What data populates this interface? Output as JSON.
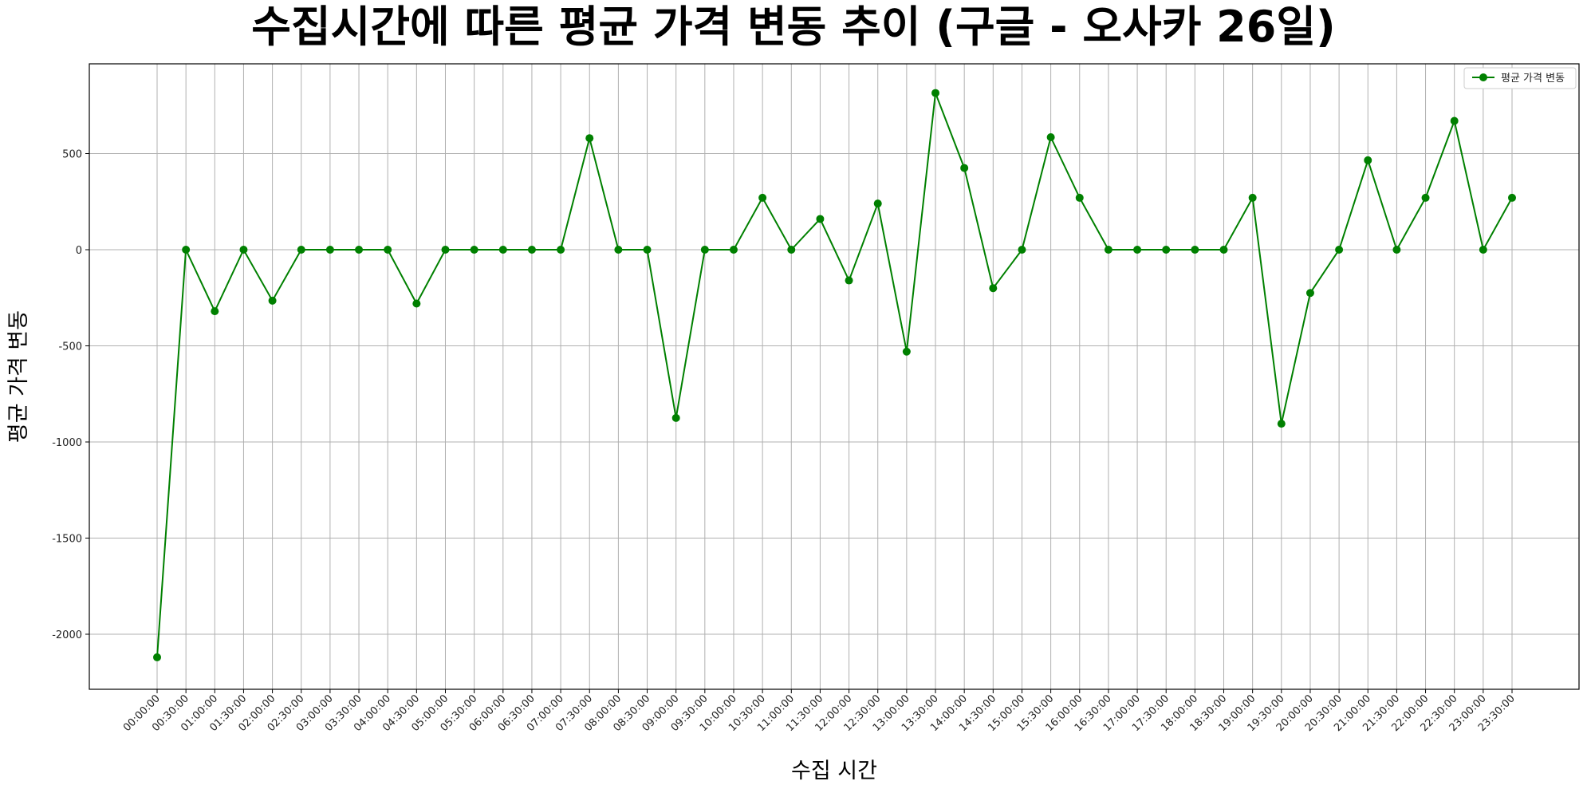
{
  "chart_data": {
    "type": "line",
    "title": "수집시간에 따른 평균 가격 변동 추이 (구글 - 오사카 26일)",
    "xlabel": "수집 시간",
    "ylabel": "평균 가격 변동",
    "ylim": [
      -2250,
      950
    ],
    "yticks": [
      500,
      0,
      -500,
      -1000,
      -1500,
      -2000
    ],
    "grid": true,
    "legend_position": "top-right",
    "color": "#008000",
    "x": [
      "00:00:00",
      "00:30:00",
      "01:00:00",
      "01:30:00",
      "02:00:00",
      "02:30:00",
      "03:00:00",
      "03:30:00",
      "04:00:00",
      "04:30:00",
      "05:00:00",
      "05:30:00",
      "06:00:00",
      "06:30:00",
      "07:00:00",
      "07:30:00",
      "08:00:00",
      "08:30:00",
      "09:00:00",
      "09:30:00",
      "10:00:00",
      "10:30:00",
      "11:00:00",
      "11:30:00",
      "12:00:00",
      "12:30:00",
      "13:00:00",
      "13:30:00",
      "14:00:00",
      "14:30:00",
      "15:00:00",
      "15:30:00",
      "16:00:00",
      "16:30:00",
      "17:00:00",
      "17:30:00",
      "18:00:00",
      "18:30:00",
      "19:00:00",
      "19:30:00",
      "20:00:00",
      "20:30:00",
      "21:00:00",
      "21:30:00",
      "22:00:00",
      "22:30:00",
      "23:00:00",
      "23:30:00"
    ],
    "series": [
      {
        "name": "평균 가격 변동",
        "values": [
          -2120,
          0,
          -320,
          0,
          -265,
          0,
          0,
          0,
          0,
          -280,
          0,
          0,
          0,
          0,
          0,
          580,
          0,
          0,
          -875,
          0,
          0,
          270,
          0,
          160,
          -160,
          240,
          -530,
          815,
          425,
          -200,
          0,
          585,
          270,
          0,
          0,
          0,
          0,
          0,
          270,
          -905,
          -225,
          0,
          465,
          0,
          270,
          670,
          0,
          270
        ]
      }
    ]
  }
}
